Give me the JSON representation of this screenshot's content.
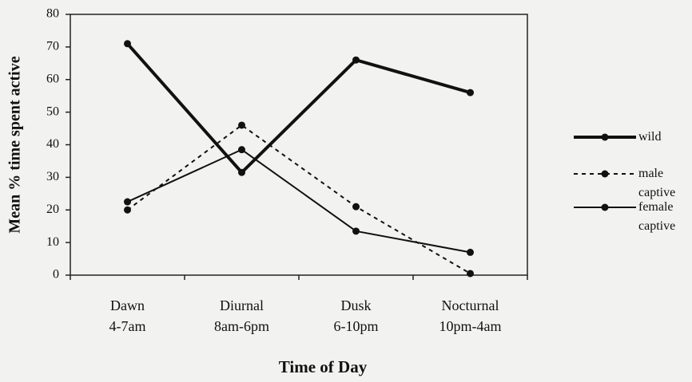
{
  "chart_data": {
    "type": "line",
    "y_label": "Mean % time spent active",
    "x_label": "Time of Day",
    "categories": [
      "Dawn\n4-7am",
      "Diurnal\n8am-6pm",
      "Dusk\n6-10pm",
      "Nocturnal\n10pm-4am"
    ],
    "series": [
      {
        "name": "wild",
        "color": "#111111",
        "line_width": 4,
        "dashed": false,
        "values": [
          71,
          31.5,
          66,
          56
        ]
      },
      {
        "name": "male\ncaptive",
        "color": "#111111",
        "line_width": 2,
        "dashed": true,
        "values": [
          20,
          46,
          21,
          0.5
        ]
      },
      {
        "name": "female\ncaptive",
        "color": "#111111",
        "line_width": 2,
        "dashed": false,
        "values": [
          22.5,
          38.5,
          13.5,
          7
        ]
      }
    ],
    "ylim": [
      0,
      80
    ],
    "yticks": [
      0,
      10,
      20,
      30,
      40,
      50,
      60,
      70,
      80
    ],
    "grid": false,
    "legend": "right"
  }
}
